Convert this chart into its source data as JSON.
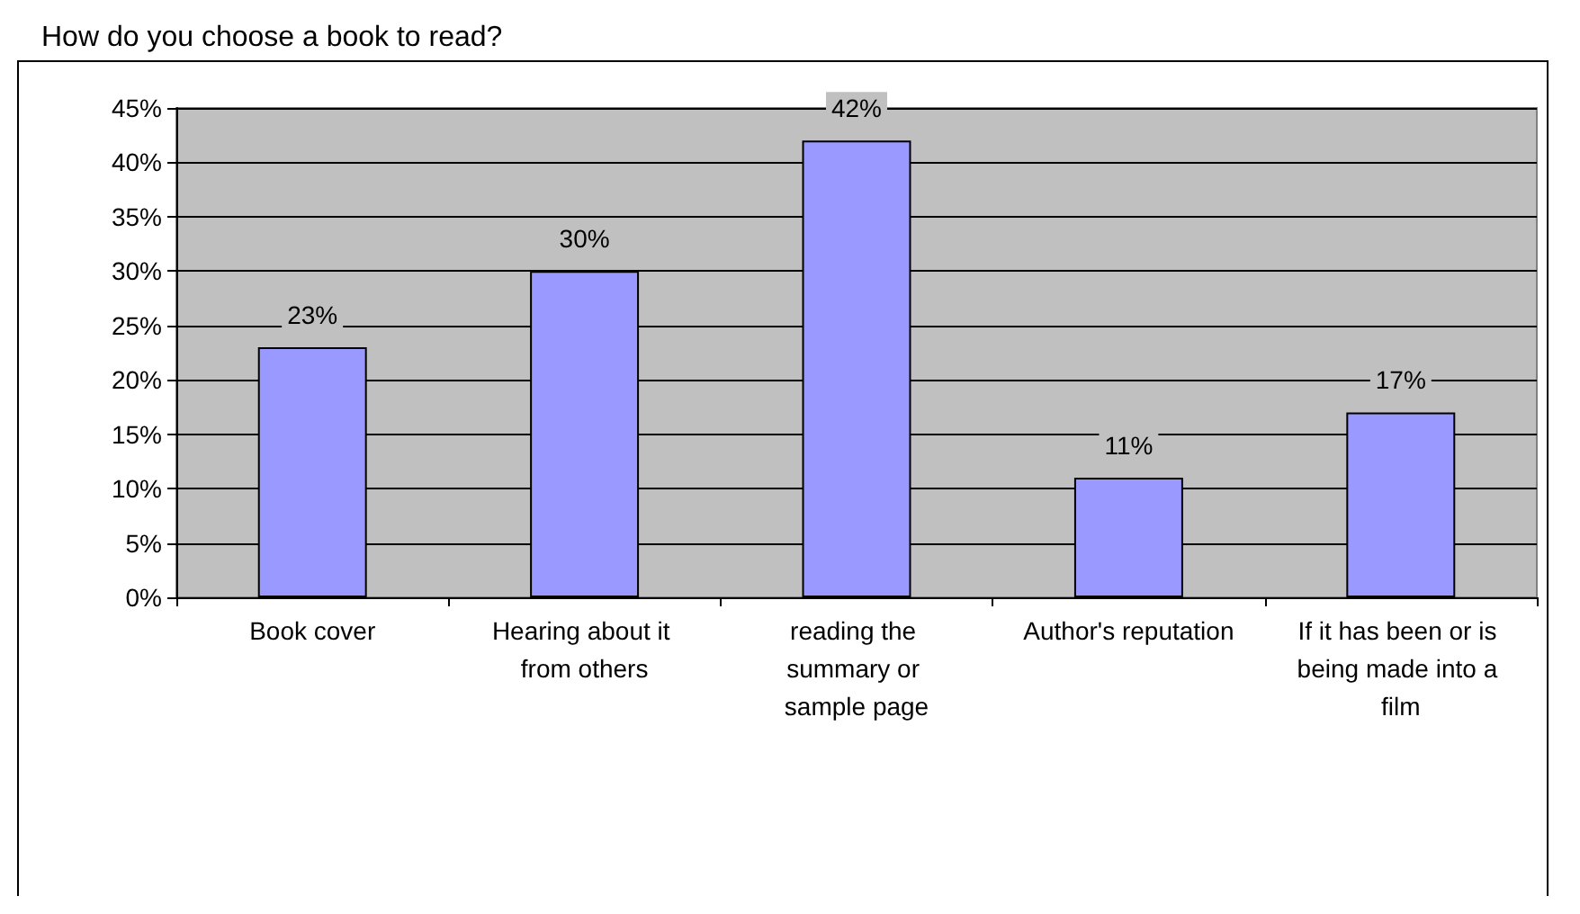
{
  "chart_data": {
    "type": "bar",
    "title": "How do you choose a book to read?",
    "categories": [
      "Book cover",
      "Hearing about it from others",
      "reading the summary or sample page",
      "Author's reputation",
      "If it has been or is being made into a film"
    ],
    "values": [
      23,
      30,
      42,
      11,
      17
    ],
    "value_labels": [
      "23%",
      "30%",
      "42%",
      "11%",
      "17%"
    ],
    "color": "#9999ff",
    "ylim": [
      0,
      45
    ],
    "yticks": [
      {
        "value": 0,
        "label": "0%"
      },
      {
        "value": 5,
        "label": "5%"
      },
      {
        "value": 10,
        "label": "10%"
      },
      {
        "value": 15,
        "label": "15%"
      },
      {
        "value": 20,
        "label": "20%"
      },
      {
        "value": 25,
        "label": "25%"
      },
      {
        "value": 30,
        "label": "30%"
      },
      {
        "value": 35,
        "label": "35%"
      },
      {
        "value": 40,
        "label": "40%"
      },
      {
        "value": 45,
        "label": "45%"
      }
    ],
    "grid": "y"
  }
}
